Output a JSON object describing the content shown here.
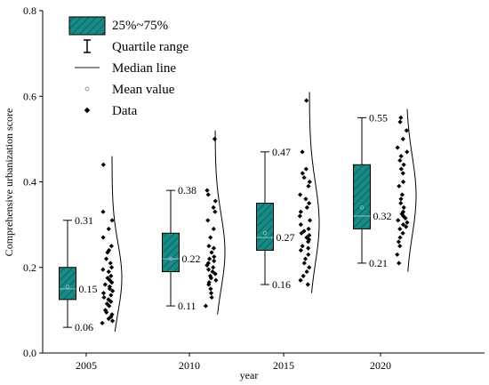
{
  "chart_data": {
    "type": "box",
    "title": "",
    "xlabel": "year",
    "ylabel": "Comprehensive urbanization score",
    "ylim": [
      0,
      0.8
    ],
    "yticks": [
      "0.0",
      "0.2",
      "0.4",
      "0.6",
      "0.8"
    ],
    "xticks": [
      "2005",
      "2010",
      "2015",
      "2020"
    ],
    "legend": {
      "position": "top-left",
      "items": [
        {
          "label": "25%~75%",
          "kind": "box"
        },
        {
          "label": "Quartile range",
          "kind": "whisker"
        },
        {
          "label": "Median line",
          "kind": "line"
        },
        {
          "label": "Mean value",
          "kind": "mean"
        },
        {
          "label": "Data",
          "kind": "point"
        }
      ]
    },
    "colors": {
      "box": "#178a86",
      "hatch": "#0d5552",
      "median": "#8fc7c2",
      "points": "#000000"
    },
    "groups": [
      {
        "year": "2005",
        "min": 0.06,
        "q1": 0.125,
        "median": 0.15,
        "q3": 0.2,
        "max": 0.31,
        "mean": 0.155,
        "labels": {
          "max": "0.31",
          "median": "0.15",
          "min": "0.06"
        },
        "data": [
          0.44,
          0.33,
          0.31,
          0.29,
          0.27,
          0.25,
          0.24,
          0.235,
          0.22,
          0.21,
          0.2,
          0.195,
          0.19,
          0.18,
          0.175,
          0.17,
          0.165,
          0.16,
          0.155,
          0.15,
          0.145,
          0.14,
          0.135,
          0.13,
          0.125,
          0.12,
          0.115,
          0.11,
          0.1,
          0.095,
          0.09,
          0.085,
          0.08,
          0.075,
          0.07
        ]
      },
      {
        "year": "2010",
        "min": 0.11,
        "q1": 0.19,
        "median": 0.22,
        "q3": 0.28,
        "max": 0.38,
        "mean": 0.22,
        "labels": {
          "max": "0.38",
          "median": "0.22",
          "min": "0.11"
        },
        "data": [
          0.5,
          0.38,
          0.37,
          0.355,
          0.34,
          0.33,
          0.31,
          0.29,
          0.27,
          0.25,
          0.245,
          0.235,
          0.225,
          0.22,
          0.215,
          0.21,
          0.205,
          0.2,
          0.195,
          0.19,
          0.185,
          0.18,
          0.175,
          0.17,
          0.165,
          0.16,
          0.15,
          0.14,
          0.13,
          0.11
        ]
      },
      {
        "year": "2015",
        "min": 0.16,
        "q1": 0.24,
        "median": 0.27,
        "q3": 0.35,
        "max": 0.47,
        "mean": 0.28,
        "labels": {
          "max": "0.47",
          "median": "0.27",
          "min": "0.16"
        },
        "data": [
          0.59,
          0.47,
          0.43,
          0.42,
          0.41,
          0.4,
          0.39,
          0.37,
          0.36,
          0.35,
          0.34,
          0.33,
          0.32,
          0.31,
          0.3,
          0.29,
          0.285,
          0.28,
          0.275,
          0.27,
          0.265,
          0.26,
          0.25,
          0.245,
          0.24,
          0.23,
          0.22,
          0.21,
          0.2,
          0.19,
          0.18,
          0.17,
          0.16
        ]
      },
      {
        "year": "2020",
        "min": 0.21,
        "q1": 0.29,
        "median": 0.32,
        "q3": 0.44,
        "max": 0.55,
        "mean": 0.34,
        "labels": {
          "max": "0.55",
          "median": "0.32",
          "min": "0.21"
        },
        "data": [
          0.55,
          0.54,
          0.52,
          0.5,
          0.48,
          0.47,
          0.46,
          0.45,
          0.44,
          0.43,
          0.42,
          0.4,
          0.39,
          0.37,
          0.36,
          0.35,
          0.34,
          0.33,
          0.325,
          0.32,
          0.315,
          0.31,
          0.305,
          0.3,
          0.295,
          0.29,
          0.28,
          0.27,
          0.26,
          0.25,
          0.23,
          0.21
        ]
      }
    ]
  }
}
